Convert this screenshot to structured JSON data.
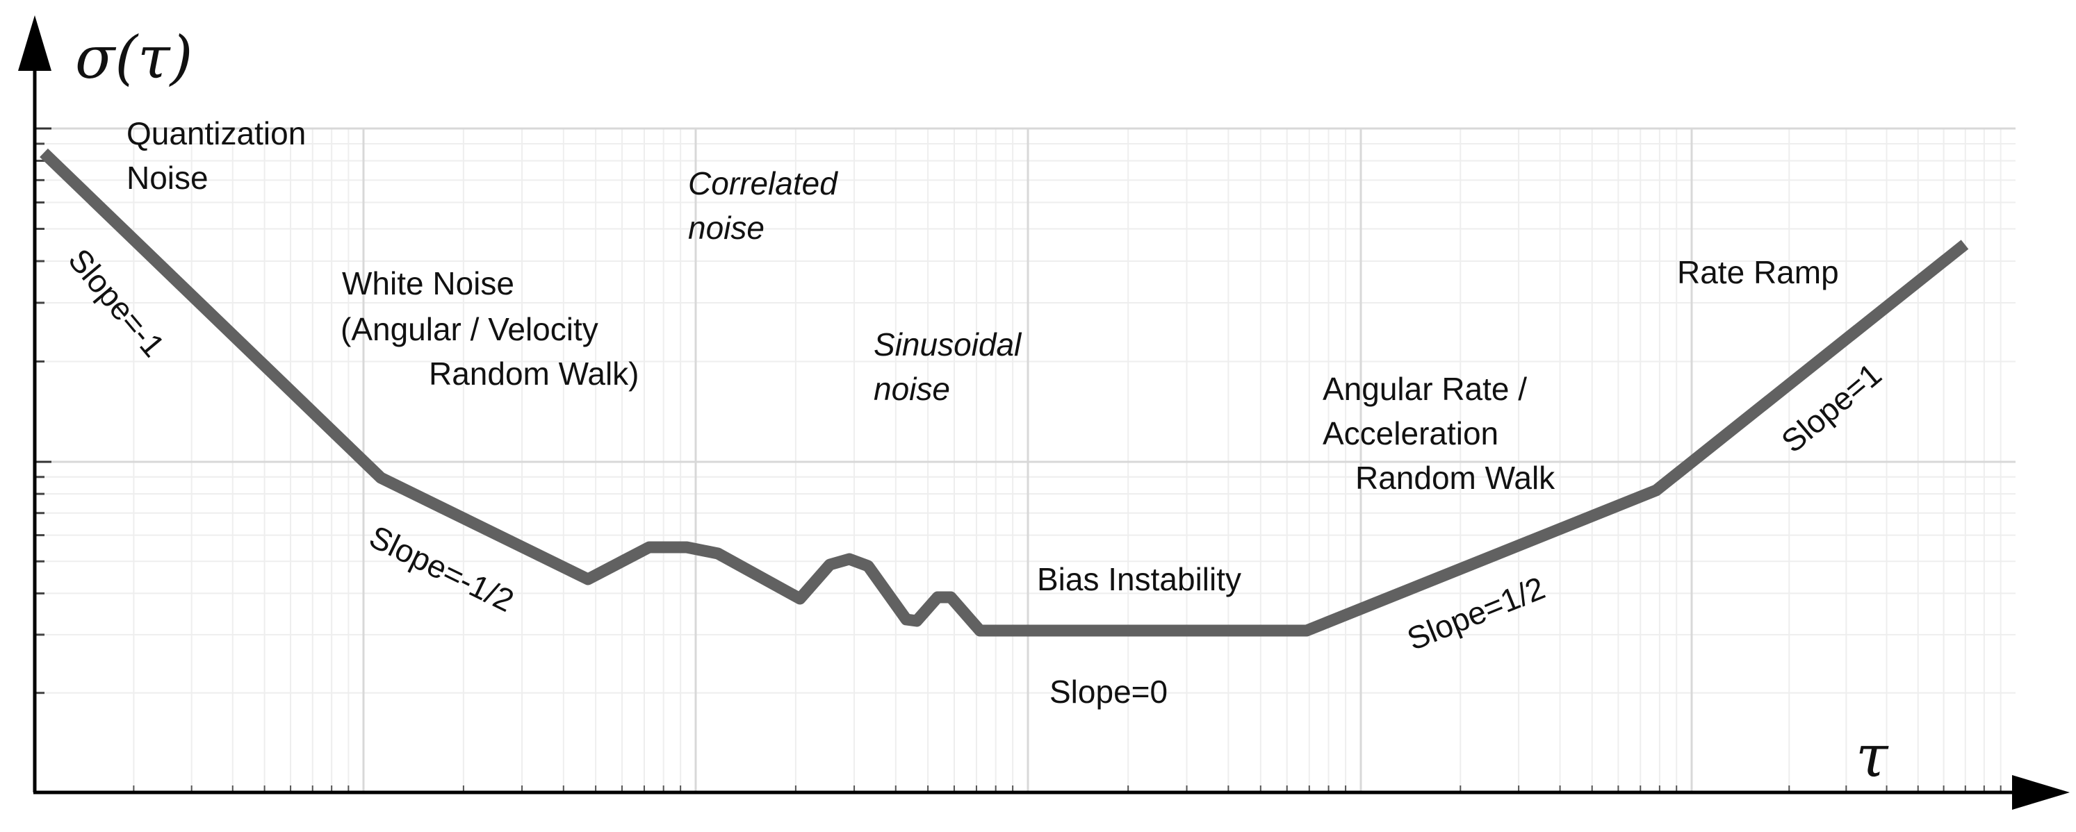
{
  "axes": {
    "y_symbol": "σ(τ)",
    "x_symbol": "τ"
  },
  "region_labels": [
    {
      "lines": [
        "Quantization",
        "Noise"
      ],
      "italic": false
    },
    {
      "lines": [
        "White Noise",
        "(Angular / Velocity",
        "Random Walk)"
      ],
      "italic": false
    },
    {
      "lines": [
        "Correlated",
        "noise"
      ],
      "italic": true
    },
    {
      "lines": [
        "Sinusoidal",
        "noise"
      ],
      "italic": true
    },
    {
      "lines": [
        "Bias Instability"
      ],
      "italic": false
    },
    {
      "lines": [
        "Angular Rate /",
        "Acceleration",
        "Random Walk"
      ],
      "italic": false
    },
    {
      "lines": [
        "Rate Ramp"
      ],
      "italic": false
    }
  ],
  "slope_labels": [
    "Slope=-1",
    "Slope=-1/2",
    "Slope=0",
    "Slope=1/2",
    "Slope=1"
  ],
  "colors": {
    "curve": "#616161",
    "axis": "#000000",
    "grid_major": "#d8d8d8",
    "grid_minor": "#eeeeee"
  }
}
